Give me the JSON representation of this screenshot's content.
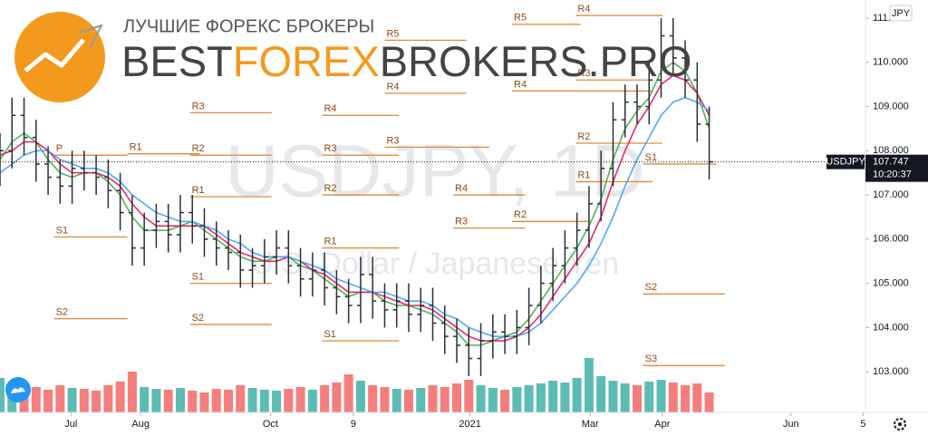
{
  "logo": {
    "tagline": "ЛУЧШИЕ ФОРЕКС БРОКЕРЫ",
    "pre": "BEST",
    "mid": "FOREX",
    "post": "BROKERS.PRO"
  },
  "watermark": {
    "symbol": "USDJPY, 1D",
    "description": "U.S. Dollar / Japanese Yen"
  },
  "chart_data": {
    "type": "candlestick",
    "currency_tag": "JPY",
    "symbol_tag": "USDJPY",
    "last_price": 107.747,
    "last_time": "10:20:37",
    "up_color": "#26a69a",
    "down_color": "#ef5350",
    "bar_color": "#2a2e39",
    "open": [
      107.6,
      108.0,
      108.8,
      108.3,
      107.7,
      107.4,
      107.2,
      107.6,
      107.5,
      107.4,
      107.1,
      106.6,
      105.8,
      106.2,
      106.4,
      106.1,
      106.6,
      106.3,
      106.0,
      105.8,
      105.7,
      105.3,
      105.4,
      105.6,
      105.8,
      105.4,
      105.1,
      105.3,
      104.9,
      104.7,
      104.5,
      105.2,
      104.6,
      104.4,
      104.6,
      104.3,
      104.5,
      104.1,
      103.8,
      103.6,
      103.3,
      103.7,
      103.9,
      103.8,
      104.0,
      104.5,
      105.0,
      105.4,
      105.8,
      106.2,
      106.8,
      107.6,
      108.7,
      109.1,
      109.0,
      109.6,
      110.6,
      110.1,
      109.6,
      108.6
    ],
    "high": [
      108.4,
      109.2,
      109.2,
      108.7,
      108.1,
      107.8,
      108.0,
      108.0,
      107.9,
      107.8,
      107.5,
      107.0,
      106.6,
      106.8,
      106.8,
      107.0,
      107.0,
      106.7,
      106.4,
      106.2,
      106.1,
      105.8,
      106.0,
      106.2,
      106.2,
      105.8,
      105.7,
      105.7,
      105.3,
      105.1,
      105.6,
      105.6,
      105.0,
      105.0,
      105.0,
      104.9,
      104.9,
      104.5,
      104.2,
      104.0,
      104.1,
      104.3,
      104.3,
      104.4,
      104.9,
      105.4,
      105.8,
      106.2,
      106.6,
      107.2,
      108.0,
      109.1,
      109.5,
      109.5,
      110.0,
      111.0,
      111.0,
      110.5,
      110.0,
      109.0
    ],
    "low": [
      107.2,
      107.6,
      107.9,
      107.3,
      107.0,
      106.8,
      106.8,
      107.1,
      107.0,
      106.7,
      106.2,
      105.4,
      105.4,
      105.8,
      105.7,
      105.7,
      105.9,
      105.6,
      105.4,
      105.3,
      104.9,
      104.9,
      105.0,
      105.2,
      105.0,
      104.7,
      104.7,
      104.5,
      104.3,
      104.1,
      104.1,
      104.2,
      104.0,
      104.0,
      103.9,
      103.9,
      103.7,
      103.4,
      103.2,
      102.9,
      102.9,
      103.3,
      103.4,
      103.4,
      103.6,
      104.1,
      104.6,
      105.0,
      105.4,
      105.8,
      106.4,
      107.2,
      108.3,
      108.6,
      108.6,
      109.2,
      109.7,
      109.2,
      108.2,
      107.35
    ],
    "close": [
      108.0,
      108.8,
      108.3,
      107.7,
      107.4,
      107.2,
      107.6,
      107.5,
      107.4,
      107.1,
      106.6,
      105.8,
      106.2,
      106.4,
      106.1,
      106.6,
      106.3,
      106.0,
      105.8,
      105.7,
      105.3,
      105.4,
      105.6,
      105.8,
      105.4,
      105.1,
      105.3,
      104.9,
      104.7,
      104.5,
      105.2,
      104.6,
      104.4,
      104.6,
      104.3,
      104.5,
      104.1,
      103.8,
      103.6,
      103.3,
      103.7,
      103.9,
      103.8,
      104.0,
      104.5,
      105.0,
      105.4,
      105.8,
      106.2,
      106.8,
      107.6,
      108.7,
      109.1,
      109.0,
      109.6,
      110.6,
      110.1,
      109.6,
      108.6,
      107.75
    ],
    "volume": [
      38,
      30,
      32,
      28,
      25,
      30,
      27,
      26,
      24,
      30,
      34,
      45,
      28,
      26,
      25,
      27,
      24,
      22,
      26,
      25,
      30,
      27,
      25,
      24,
      26,
      28,
      25,
      30,
      33,
      42,
      35,
      30,
      28,
      26,
      25,
      27,
      30,
      28,
      32,
      36,
      30,
      27,
      25,
      28,
      30,
      32,
      35,
      33,
      38,
      60,
      40,
      35,
      32,
      30,
      34,
      36,
      33,
      30,
      32,
      22
    ],
    "volume_lim": [
      0,
      100
    ],
    "moving_averages": [
      {
        "color": "#4caf50",
        "values": [
          107.8,
          108.2,
          108.4,
          108.2,
          107.8,
          107.5,
          107.4,
          107.5,
          107.5,
          107.3,
          107.0,
          106.5,
          106.2,
          106.2,
          106.2,
          106.3,
          106.4,
          106.2,
          106.0,
          105.8,
          105.6,
          105.5,
          105.5,
          105.6,
          105.6,
          105.4,
          105.3,
          105.1,
          104.9,
          104.7,
          104.8,
          104.8,
          104.6,
          104.5,
          104.5,
          104.4,
          104.3,
          104.1,
          103.9,
          103.6,
          103.6,
          103.7,
          103.8,
          103.9,
          104.2,
          104.6,
          105.0,
          105.4,
          105.8,
          106.3,
          106.9,
          107.8,
          108.5,
          108.9,
          109.2,
          109.8,
          110.0,
          109.8,
          109.3,
          108.5
        ]
      },
      {
        "color": "#e91e63",
        "values": [
          107.9,
          108.0,
          108.2,
          108.2,
          108.0,
          107.7,
          107.5,
          107.5,
          107.5,
          107.4,
          107.2,
          106.8,
          106.5,
          106.3,
          106.3,
          106.3,
          106.3,
          106.3,
          106.1,
          105.9,
          105.7,
          105.6,
          105.5,
          105.5,
          105.6,
          105.5,
          105.3,
          105.2,
          105.0,
          104.8,
          104.8,
          104.8,
          104.7,
          104.6,
          104.5,
          104.5,
          104.4,
          104.2,
          104.0,
          103.8,
          103.7,
          103.7,
          103.7,
          103.8,
          104.0,
          104.3,
          104.7,
          105.1,
          105.5,
          105.9,
          106.5,
          107.3,
          108.0,
          108.6,
          109.0,
          109.5,
          109.7,
          109.6,
          109.3,
          108.8
        ]
      },
      {
        "color": "#42a5f5",
        "values": [
          107.5,
          107.7,
          107.9,
          108.0,
          108.0,
          107.8,
          107.7,
          107.6,
          107.6,
          107.5,
          107.3,
          107.0,
          106.8,
          106.6,
          106.5,
          106.4,
          106.4,
          106.3,
          106.2,
          106.0,
          105.9,
          105.7,
          105.6,
          105.6,
          105.6,
          105.5,
          105.4,
          105.3,
          105.1,
          105.0,
          104.9,
          104.8,
          104.8,
          104.7,
          104.6,
          104.6,
          104.5,
          104.3,
          104.2,
          104.0,
          103.9,
          103.8,
          103.8,
          103.8,
          103.9,
          104.1,
          104.4,
          104.7,
          105.0,
          105.4,
          105.9,
          106.5,
          107.2,
          107.8,
          108.3,
          108.8,
          109.1,
          109.2,
          109.1,
          108.9
        ]
      }
    ],
    "pivots": [
      {
        "label": "R4",
        "y": 111.06,
        "x": [
          47.9,
          55.1
        ]
      },
      {
        "label": "R5",
        "y": 110.86,
        "x": [
          42.6,
          48.3
        ]
      },
      {
        "label": "R3",
        "y": 109.6,
        "x": [
          47.9,
          54.3
        ]
      },
      {
        "label": "R4",
        "y": 109.35,
        "x": [
          42.6,
          54.3
        ]
      },
      {
        "label": "R2",
        "y": 108.17,
        "x": [
          47.9,
          55.1
        ]
      },
      {
        "label": "R1",
        "y": 107.3,
        "x": [
          47.9,
          54.3
        ]
      },
      {
        "label": "S1",
        "y": 107.7,
        "x": [
          53.5,
          59.6
        ]
      },
      {
        "label": "S2",
        "y": 104.76,
        "x": [
          53.5,
          60.3
        ]
      },
      {
        "label": "S3",
        "y": 103.14,
        "x": [
          53.5,
          60.3
        ]
      },
      {
        "label": "R5",
        "y": 110.5,
        "x": [
          32,
          38.8
        ]
      },
      {
        "label": "R4",
        "y": 109.3,
        "x": [
          32,
          38.8
        ]
      },
      {
        "label": "R3",
        "y": 108.08,
        "x": [
          32,
          40.7
        ]
      },
      {
        "label": "R4",
        "y": 107.0,
        "x": [
          37.7,
          43.7
        ]
      },
      {
        "label": "R3",
        "y": 106.25,
        "x": [
          37.7,
          43.7
        ]
      },
      {
        "label": "R2",
        "y": 106.4,
        "x": [
          42.6,
          49
        ]
      },
      {
        "label": "R2",
        "y": 107.0,
        "x": [
          26.8,
          33.2
        ]
      },
      {
        "label": "R3",
        "y": 107.9,
        "x": [
          26.8,
          33.2
        ]
      },
      {
        "label": "R4",
        "y": 108.8,
        "x": [
          26.8,
          33.2
        ]
      },
      {
        "label": "R1",
        "y": 105.8,
        "x": [
          26.8,
          33.2
        ]
      },
      {
        "label": "S1",
        "y": 103.7,
        "x": [
          26.8,
          33.2
        ]
      },
      {
        "label": "R1",
        "y": 106.96,
        "x": [
          15.8,
          22.6
        ]
      },
      {
        "label": "R2",
        "y": 107.9,
        "x": [
          15.8,
          22.6
        ]
      },
      {
        "label": "R3",
        "y": 108.86,
        "x": [
          15.8,
          22.6
        ]
      },
      {
        "label": "S1",
        "y": 105.0,
        "x": [
          15.8,
          22.6
        ]
      },
      {
        "label": "S2",
        "y": 104.07,
        "x": [
          15.8,
          22.6
        ]
      },
      {
        "label": "R1",
        "y": 107.93,
        "x": [
          10.6,
          16.6
        ]
      },
      {
        "label": "P",
        "y": 107.9,
        "x": [
          4.5,
          10.6
        ]
      },
      {
        "label": "S1",
        "y": 106.05,
        "x": [
          4.5,
          10.6
        ]
      },
      {
        "label": "S2",
        "y": 104.2,
        "x": [
          4.5,
          10.6
        ]
      }
    ],
    "pivot_color": "#e08a3c",
    "xlim": [
      0,
      72
    ],
    "xticks": [
      {
        "value": 5.9,
        "label": "Jul"
      },
      {
        "value": 11.7,
        "label": "Aug"
      },
      {
        "value": 22.5,
        "label": "Oct"
      },
      {
        "value": 29.4,
        "label": "9"
      },
      {
        "value": 39.1,
        "label": "2021"
      },
      {
        "value": 49.1,
        "label": "Mar"
      },
      {
        "value": 55.1,
        "label": "Apr"
      },
      {
        "value": 65.8,
        "label": "Jun"
      },
      {
        "value": 71.8,
        "label": "5"
      }
    ],
    "ylim": [
      102.08,
      111.41
    ],
    "yticks": [
      {
        "value": 103,
        "label": "103.000"
      },
      {
        "value": 104,
        "label": "104.000"
      },
      {
        "value": 105,
        "label": "105.000"
      },
      {
        "value": 106,
        "label": "106.000"
      },
      {
        "value": 107,
        "label": "107.000"
      },
      {
        "value": 108,
        "label": "108.000"
      },
      {
        "value": 109,
        "label": "109.000"
      },
      {
        "value": 110,
        "label": "110.000"
      },
      {
        "value": 111,
        "label": "111.000"
      }
    ]
  }
}
